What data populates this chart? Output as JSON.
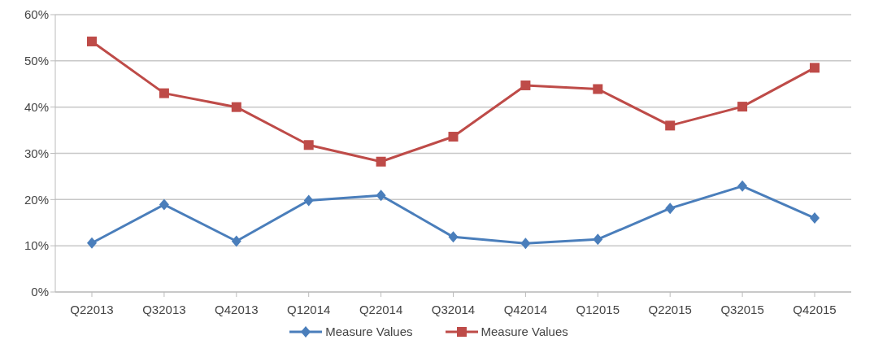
{
  "chart_data": {
    "type": "line",
    "categories": [
      "Q22013",
      "Q32013",
      "Q42013",
      "Q12014",
      "Q22014",
      "Q32014",
      "Q42014",
      "Q12015",
      "Q22015",
      "Q32015",
      "Q42015"
    ],
    "series": [
      {
        "name": "Measure Values",
        "color": "#4a7ebb",
        "marker": "diamond",
        "values": [
          10.6,
          18.9,
          11.0,
          19.8,
          20.9,
          11.9,
          10.5,
          11.4,
          18.1,
          22.9,
          16.0
        ]
      },
      {
        "name": "Measure Values",
        "color": "#be4b48",
        "marker": "square",
        "values": [
          54.2,
          43.0,
          40.0,
          31.8,
          28.2,
          33.6,
          44.7,
          43.9,
          36.0,
          40.1,
          48.5
        ]
      }
    ],
    "ylim": [
      0,
      60
    ],
    "yticks": [
      {
        "value": 0,
        "label": "0%"
      },
      {
        "value": 10,
        "label": "10%"
      },
      {
        "value": 20,
        "label": "20%"
      },
      {
        "value": 30,
        "label": "30%"
      },
      {
        "value": 40,
        "label": "40%"
      },
      {
        "value": 50,
        "label": "50%"
      },
      {
        "value": 60,
        "label": "60%"
      }
    ],
    "grid": "y",
    "legend": "bottom"
  }
}
